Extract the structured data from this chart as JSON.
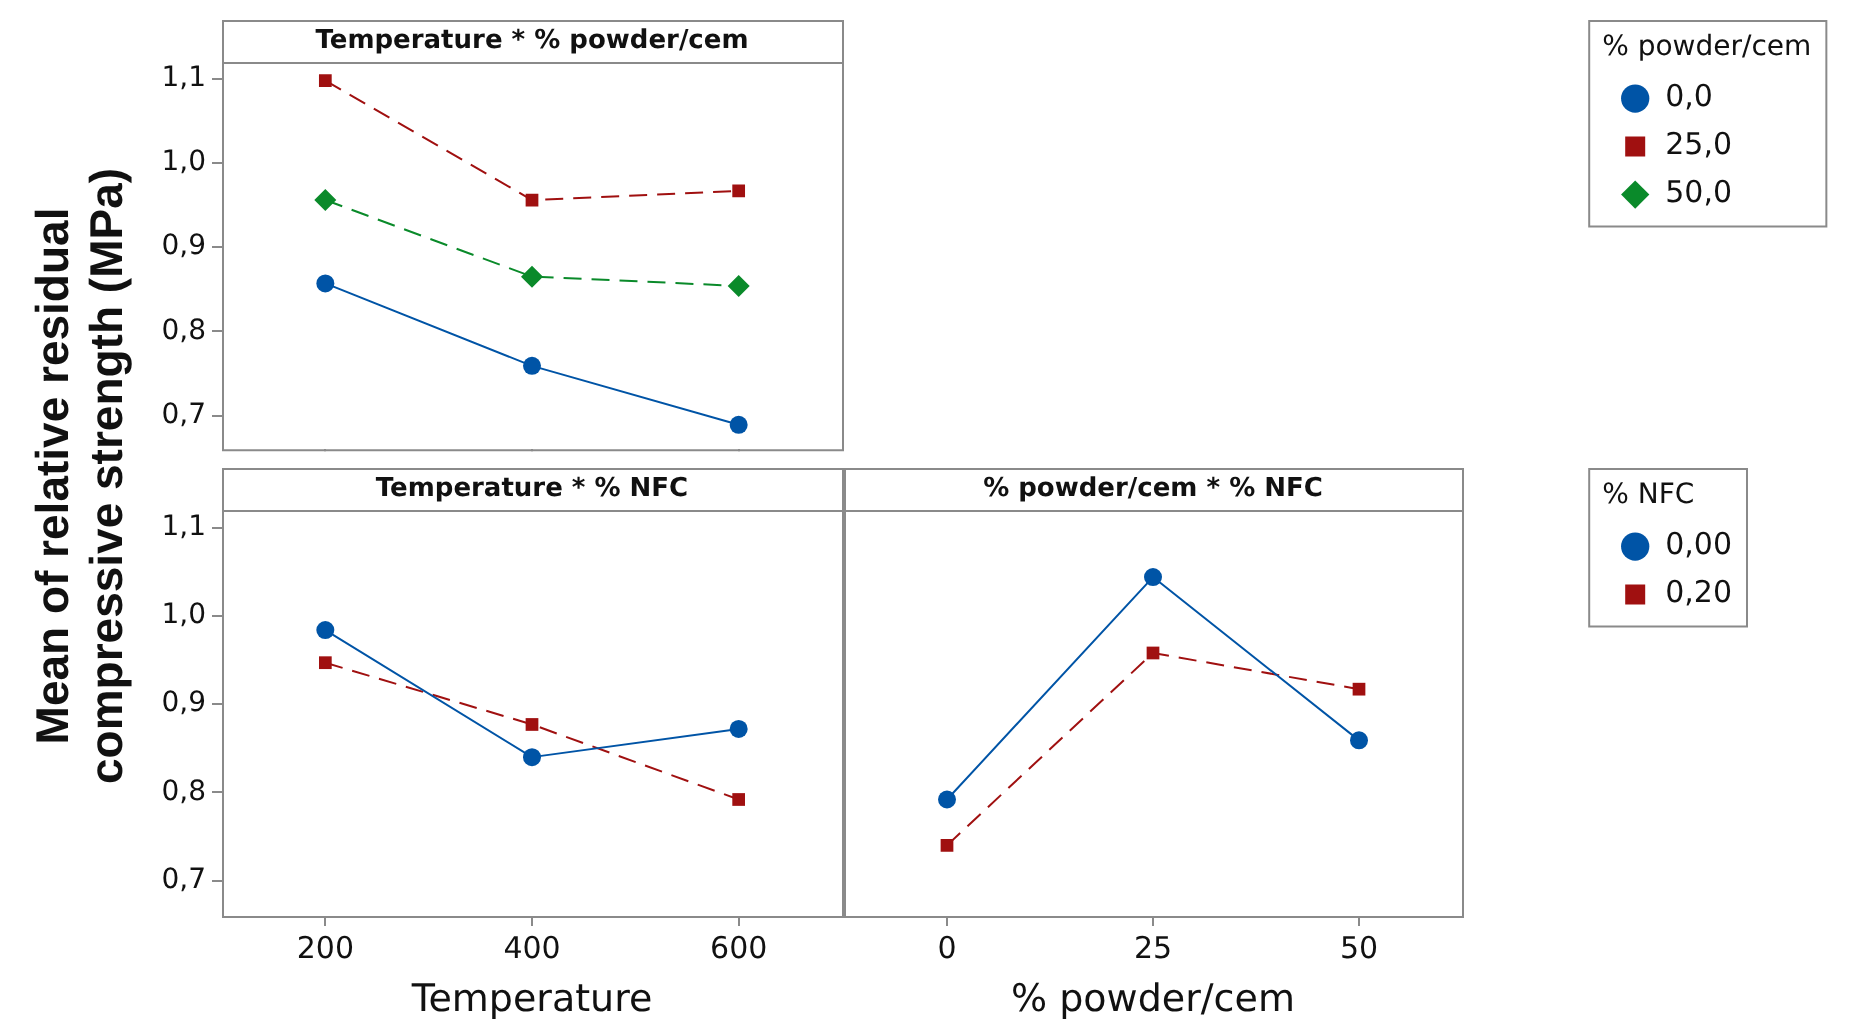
{
  "chart_data": [
    {
      "type": "line",
      "title": "Temperature * % powder/cem",
      "x": [
        200,
        400,
        600
      ],
      "xlim": [
        100,
        700
      ],
      "xticks": [
        {
          "value": 200,
          "label": null
        },
        {
          "value": 400,
          "label": null
        },
        {
          "value": 600,
          "label": null
        }
      ],
      "ylim": [
        0.66,
        1.12
      ],
      "yticks": [
        {
          "value": 0.7,
          "label": "0,7"
        },
        {
          "value": 0.8,
          "label": "0,8"
        },
        {
          "value": 0.9,
          "label": "0,9"
        },
        {
          "value": 1.0,
          "label": "1,0"
        },
        {
          "value": 1.1,
          "label": "1,1"
        }
      ],
      "tick_labels": "y",
      "legend": "right",
      "legend_title": "% powder/cem",
      "series": [
        {
          "name": "0,0",
          "color": "#0054a6",
          "marker": "circle",
          "line_style": "solid",
          "values": [
            0.857,
            0.759,
            0.689
          ]
        },
        {
          "name": "25,0",
          "color": "#a01010",
          "marker": "square",
          "line_style": "dashed",
          "values": [
            1.098,
            0.956,
            0.967
          ]
        },
        {
          "name": "50,0",
          "color": "#0a8a2a",
          "marker": "diamond",
          "line_style": "dashed",
          "values": [
            0.956,
            0.865,
            0.854
          ]
        }
      ]
    },
    {
      "type": "line",
      "title": "Temperature * % NFC",
      "xlabel": "Temperature",
      "ylabel": "Mean of relative residual compressive strength (MPa)",
      "x": [
        200,
        400,
        600
      ],
      "xlim": [
        100,
        700
      ],
      "xticks": [
        200,
        400,
        600
      ],
      "ylim": [
        0.66,
        1.12
      ],
      "yticks": [
        {
          "value": 0.7,
          "label": "0,7"
        },
        {
          "value": 0.8,
          "label": "0,8"
        },
        {
          "value": 0.9,
          "label": "0,9"
        },
        {
          "value": 1.0,
          "label": "1,0"
        },
        {
          "value": 1.1,
          "label": "1,1"
        }
      ],
      "series": [
        {
          "color": "#0054a6",
          "marker": "circle",
          "line_style": "solid",
          "values": [
            0.984,
            0.84,
            0.872
          ]
        },
        {
          "color": "#a01010",
          "marker": "square",
          "line_style": "dashed",
          "values": [
            0.947,
            0.877,
            0.792
          ]
        }
      ]
    },
    {
      "type": "line",
      "title": "% powder/cem * % NFC",
      "xlabel": "% powder/cem",
      "x": [
        0,
        25,
        50
      ],
      "xlim": [
        -12.5,
        62.5
      ],
      "xticks": [
        0,
        25,
        50
      ],
      "ylim": [
        0.66,
        1.12
      ],
      "tick_labels": "x",
      "legend": "right",
      "legend_title": "% NFC",
      "series": [
        {
          "name": "0,00",
          "color": "#0054a6",
          "marker": "circle",
          "line_style": "solid",
          "values": [
            0.792,
            1.044,
            0.859
          ]
        },
        {
          "name": "0,20",
          "color": "#a01010",
          "marker": "square",
          "line_style": "dashed",
          "values": [
            0.74,
            0.958,
            0.917
          ]
        }
      ]
    }
  ]
}
